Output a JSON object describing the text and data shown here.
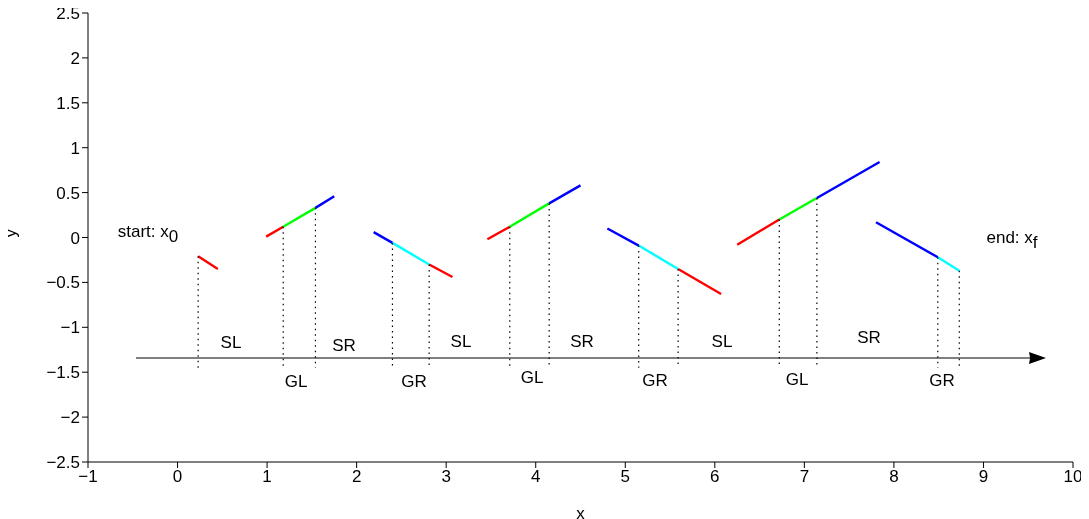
{
  "chart_data": {
    "type": "line",
    "xlabel": "x",
    "ylabel": "y",
    "xlim": [
      -1,
      10
    ],
    "xticks": [
      -1,
      0,
      1,
      2,
      3,
      4,
      5,
      6,
      7,
      8,
      9,
      10
    ],
    "ylim": [
      -2.5,
      2.5
    ],
    "yticks": [
      -2.5,
      -2,
      -1.5,
      -1,
      -0.5,
      0,
      0.5,
      1,
      1.5,
      2,
      2.5
    ],
    "grid": false,
    "marker": "none",
    "series": [
      {
        "color": "#ff0000",
        "line_style": "solid",
        "x": [
          0.23,
          0.45,
          null,
          0.99,
          1.18,
          null,
          2.81,
          3.07,
          null,
          3.46,
          3.71,
          null,
          5.59,
          6.07,
          null,
          6.25,
          6.72
        ],
        "values": [
          -0.21,
          -0.35,
          null,
          0.01,
          0.12,
          null,
          -0.3,
          -0.44,
          null,
          -0.02,
          0.12,
          null,
          -0.35,
          -0.63,
          null,
          -0.08,
          0.2
        ]
      },
      {
        "color": "#00ff00",
        "line_style": "solid",
        "x": [
          1.18,
          1.54,
          null,
          3.71,
          4.15,
          null,
          6.72,
          7.14
        ],
        "values": [
          0.12,
          0.33,
          null,
          0.12,
          0.38,
          null,
          0.2,
          0.44
        ]
      },
      {
        "color": "#0000ff",
        "line_style": "solid",
        "x": [
          1.54,
          1.75,
          null,
          2.19,
          2.4,
          null,
          4.15,
          4.5,
          null,
          4.8,
          5.15,
          null,
          7.14,
          7.84,
          null,
          7.8,
          8.49
        ],
        "values": [
          0.33,
          0.46,
          null,
          0.06,
          -0.06,
          null,
          0.38,
          0.58,
          null,
          0.1,
          -0.09,
          null,
          0.44,
          0.84,
          null,
          0.17,
          -0.22
        ]
      },
      {
        "color": "#00ffff",
        "line_style": "solid",
        "x": [
          2.4,
          2.81,
          null,
          5.15,
          5.59,
          null,
          8.49,
          8.73
        ],
        "values": [
          -0.06,
          -0.3,
          null,
          -0.09,
          -0.35,
          null,
          -0.22,
          -0.37
        ]
      },
      {
        "color": "#000000",
        "line_style": "dotted",
        "x": [
          0.23,
          0.23,
          null,
          1.18,
          1.18,
          null,
          1.54,
          1.54,
          null,
          2.4,
          2.4,
          null,
          2.81,
          2.81,
          null,
          3.71,
          3.71,
          null,
          4.15,
          4.15,
          null,
          5.15,
          5.15,
          null,
          5.59,
          5.59,
          null,
          6.72,
          6.72,
          null,
          7.14,
          7.14,
          null,
          8.49,
          8.49,
          null,
          8.73,
          8.73
        ],
        "values": [
          -0.21,
          -1.45,
          null,
          0.12,
          -1.45,
          null,
          0.33,
          -1.45,
          null,
          -0.06,
          -1.45,
          null,
          -0.3,
          -1.45,
          null,
          0.12,
          -1.45,
          null,
          0.38,
          -1.45,
          null,
          -0.09,
          -1.45,
          null,
          -0.35,
          -1.45,
          null,
          0.2,
          -1.45,
          null,
          0.44,
          -1.45,
          null,
          -0.22,
          -1.45,
          null,
          -0.37,
          -1.45
        ]
      }
    ],
    "annotations": [
      "start: x$_{0}$",
      "end: x$_{f}$",
      "SL",
      "SR",
      "SL",
      "SR",
      "SL",
      "SR",
      "GL",
      "GR",
      "GL",
      "GR",
      "GL",
      "GR"
    ]
  }
}
